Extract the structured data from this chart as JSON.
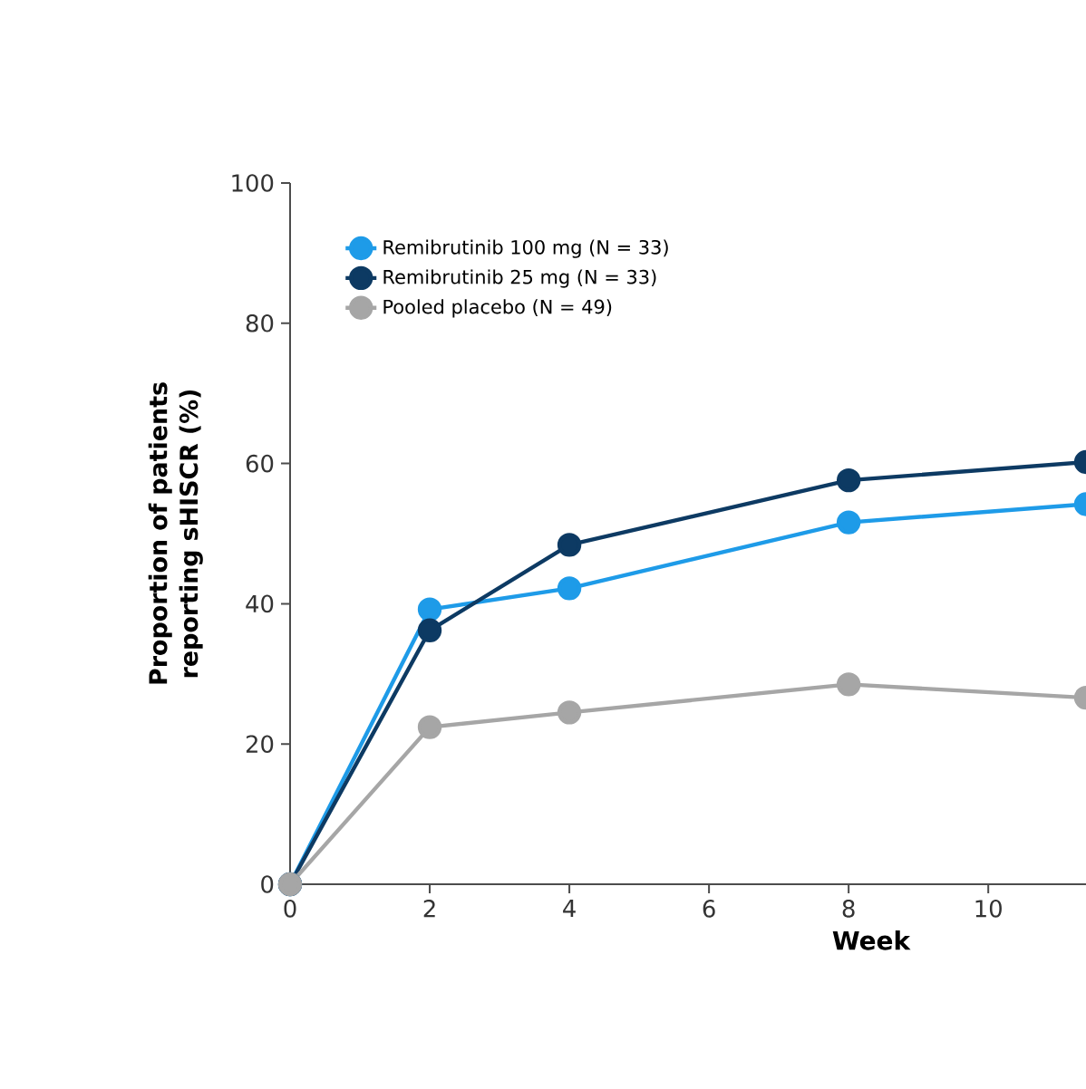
{
  "chart_data": {
    "type": "line",
    "xlabel": "Week",
    "ylabel": "Proportion of patients reporting sHISCR (%)",
    "x": [
      0,
      2,
      4,
      8,
      11.4
    ],
    "series": [
      {
        "name": "Remibrutinib 100 mg (N = 33)",
        "color": "#1e9be8",
        "values": [
          0,
          39.2,
          42.2,
          51.6,
          54.2
        ]
      },
      {
        "name": "Remibrutinib 25 mg (N = 33)",
        "color": "#0d3a63",
        "values": [
          0,
          36.2,
          48.4,
          57.6,
          60.2
        ]
      },
      {
        "name": "Pooled placebo (N = 49)",
        "color": "#a6a6a6",
        "values": [
          0,
          22.4,
          24.5,
          28.5,
          26.6
        ]
      }
    ],
    "xlim": [
      0,
      11.4
    ],
    "xticks": [
      0,
      2,
      4,
      6,
      8,
      10
    ],
    "ylim": [
      0,
      100
    ],
    "yticks": [
      0,
      20,
      40,
      60,
      80,
      100
    ],
    "legend": "top left",
    "marker": "circle",
    "line_style": "solid",
    "grid": false
  }
}
